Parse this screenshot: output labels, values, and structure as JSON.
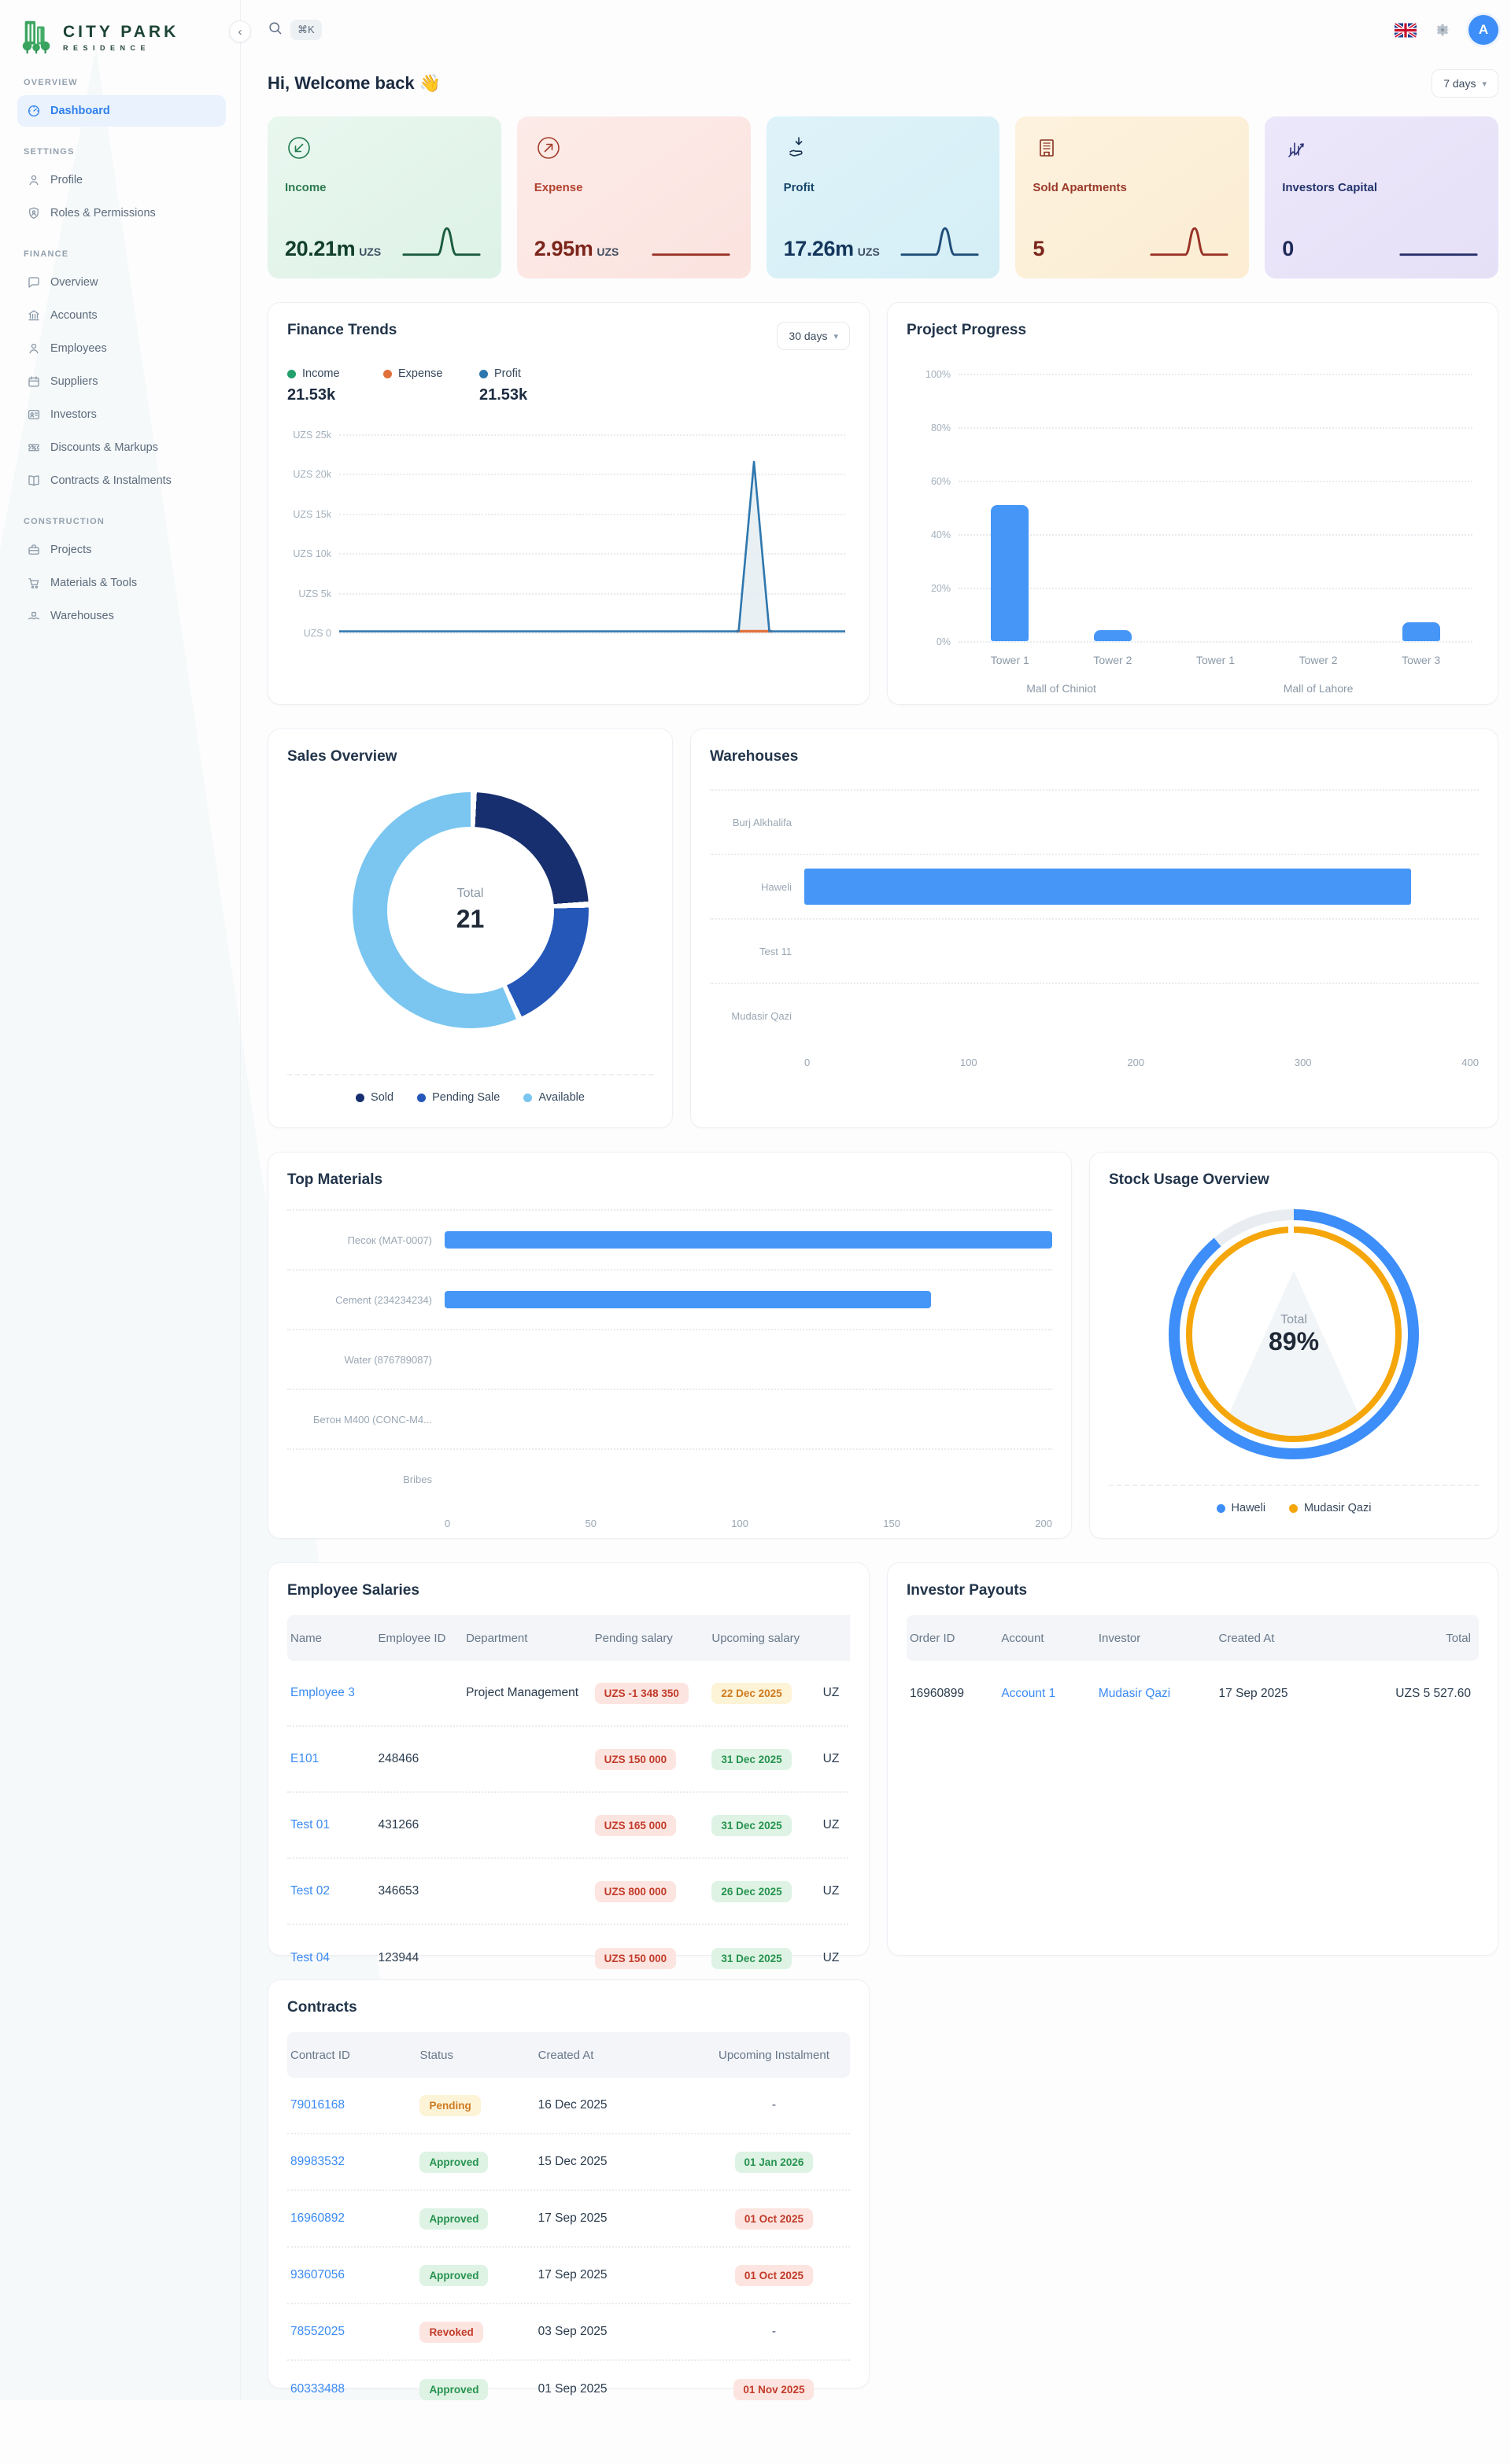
{
  "brand": {
    "line1": "CITY PARK",
    "line2": "RESIDENCE"
  },
  "header": {
    "search_shortcut": "⌘K",
    "welcome": "Hi, Welcome back 👋",
    "date_range": "7 days",
    "avatar_initial": "A"
  },
  "sidebar": {
    "sections": [
      {
        "label": "OVERVIEW",
        "items": [
          {
            "label": "Dashboard"
          }
        ]
      },
      {
        "label": "SETTINGS",
        "items": [
          {
            "label": "Profile"
          },
          {
            "label": "Roles & Permissions"
          }
        ]
      },
      {
        "label": "FINANCE",
        "items": [
          {
            "label": "Overview"
          },
          {
            "label": "Accounts"
          },
          {
            "label": "Employees"
          },
          {
            "label": "Suppliers"
          },
          {
            "label": "Investors"
          },
          {
            "label": "Discounts & Markups"
          },
          {
            "label": "Contracts & Instalments"
          }
        ]
      },
      {
        "label": "CONSTRUCTION",
        "items": [
          {
            "label": "Projects"
          },
          {
            "label": "Materials & Tools"
          },
          {
            "label": "Warehouses"
          }
        ]
      }
    ]
  },
  "stats": [
    {
      "label": "Income",
      "value": "20.21m",
      "unit": "UZS"
    },
    {
      "label": "Expense",
      "value": "2.95m",
      "unit": "UZS"
    },
    {
      "label": "Profit",
      "value": "17.26m",
      "unit": "UZS"
    },
    {
      "label": "Sold Apartments",
      "value": "5",
      "unit": ""
    },
    {
      "label": "Investors Capital",
      "value": "0",
      "unit": ""
    }
  ],
  "chart_data": [
    {
      "id": "finance_trends",
      "type": "line",
      "title": "Finance Trends",
      "range_selector": "30 days",
      "legend": [
        {
          "name": "Income",
          "color": "#22a06b",
          "total": "21.53k"
        },
        {
          "name": "Expense",
          "color": "#e1703c",
          "total": ""
        },
        {
          "name": "Profit",
          "color": "#2e77ae",
          "total": "21.53k"
        }
      ],
      "y_ticks": [
        "UZS 25k",
        "UZS 20k",
        "UZS 15k",
        "UZS 10k",
        "UZS 5k",
        "UZS 0"
      ],
      "ylim": [
        0,
        25000
      ],
      "series_note": "Income and Profit flat at 0 across 30 days with a single sharp spike near day 25; Expense ~0 throughout",
      "spike": {
        "value": 21530,
        "x_fraction": 0.82
      }
    },
    {
      "id": "project_progress",
      "type": "bar",
      "title": "Project Progress",
      "y_ticks": [
        "100%",
        "80%",
        "60%",
        "40%",
        "20%",
        "0%"
      ],
      "ylim": [
        0,
        100
      ],
      "bars": [
        {
          "label": "Tower 1",
          "group": "Mall of Chiniot",
          "value": 51
        },
        {
          "label": "Tower 2",
          "group": "Mall of Chiniot",
          "value": 4
        },
        {
          "label": "Tower 1",
          "group": "Mall of Lahore",
          "value": 0
        },
        {
          "label": "Tower 2",
          "group": "Mall of Lahore",
          "value": 0
        },
        {
          "label": "Tower 3",
          "group": "Mall of Lahore",
          "value": 7
        }
      ],
      "groups": [
        {
          "label": "Mall of Chiniot"
        },
        {
          "label": "Mall of Lahore"
        }
      ],
      "bar_color": "#4596f7"
    },
    {
      "id": "sales_overview",
      "type": "pie",
      "title": "Sales Overview",
      "center_label": "Total",
      "total": 21,
      "segments": [
        {
          "label": "Sold",
          "value": 5,
          "color": "#172f6e"
        },
        {
          "label": "Pending Sale",
          "value": 4,
          "color": "#2457b8"
        },
        {
          "label": "Available",
          "value": 12,
          "color": "#7ac6f0"
        }
      ]
    },
    {
      "id": "warehouses",
      "type": "bar",
      "orientation": "horizontal",
      "title": "Warehouses",
      "categories": [
        "Burj Alkhalifa",
        "Haweli",
        "Test 11",
        "Mudasir Qazi"
      ],
      "values": [
        0,
        360,
        0,
        0
      ],
      "x_ticks": [
        "0",
        "100",
        "200",
        "300",
        "400"
      ],
      "xlim": [
        0,
        400
      ],
      "bar_color": "#4596f7"
    },
    {
      "id": "top_materials",
      "type": "bar",
      "orientation": "horizontal",
      "title": "Top Materials",
      "categories": [
        "Песок (MAT-0007)",
        "Cement (234234234)",
        "Water (876789087)",
        "Бетон М400 (CONC-M4...",
        "Bribes"
      ],
      "values": [
        200,
        160,
        0,
        0,
        0
      ],
      "x_ticks": [
        "0",
        "50",
        "100",
        "150",
        "200"
      ],
      "xlim": [
        0,
        200
      ],
      "bar_color": "#4596f7"
    },
    {
      "id": "stock_usage",
      "type": "pie",
      "title": "Stock Usage Overview",
      "center_label": "Total",
      "center_value": "89%",
      "rings": [
        {
          "label": "Haweli",
          "color": "#3d8ef8",
          "pct": 89
        },
        {
          "label": "Mudasir Qazi",
          "color": "#f5a60a",
          "pct": 100
        }
      ]
    }
  ],
  "tables": {
    "employee_salaries": {
      "title": "Employee Salaries",
      "headers": [
        "Name",
        "Employee ID",
        "Department",
        "Pending salary",
        "Upcoming salary"
      ],
      "rows": [
        {
          "name": "Employee 3",
          "employee_id": "",
          "department": "Project Management",
          "pending_salary": "UZS -1 348 350",
          "upcoming_date": "22 Dec 2025",
          "clipped": "UZ"
        },
        {
          "name": "E101",
          "employee_id": "248466",
          "department": "",
          "pending_salary": "UZS 150 000",
          "upcoming_date": "31 Dec 2025",
          "clipped": "UZ"
        },
        {
          "name": "Test 01",
          "employee_id": "431266",
          "department": "",
          "pending_salary": "UZS 165 000",
          "upcoming_date": "31 Dec 2025",
          "clipped": "UZ"
        },
        {
          "name": "Test 02",
          "employee_id": "346653",
          "department": "",
          "pending_salary": "UZS 800 000",
          "upcoming_date": "26 Dec 2025",
          "clipped": "UZ"
        },
        {
          "name": "Test 04",
          "employee_id": "123944",
          "department": "",
          "pending_salary": "UZS 150 000",
          "upcoming_date": "31 Dec 2025",
          "clipped": "UZ"
        }
      ]
    },
    "investor_payouts": {
      "title": "Investor Payouts",
      "headers": [
        "Order ID",
        "Account",
        "Investor",
        "Created At",
        "Total"
      ],
      "rows": [
        {
          "order_id": "16960899",
          "account": "Account 1",
          "investor": "Mudasir Qazi",
          "created_at": "17 Sep 2025",
          "total": "UZS 5 527.60"
        }
      ]
    },
    "contracts": {
      "title": "Contracts",
      "headers": [
        "Contract ID",
        "Status",
        "Created At",
        "Upcoming Instalment"
      ],
      "rows": [
        {
          "contract_id": "79016168",
          "status": "Pending",
          "created_at": "16 Dec 2025",
          "upcoming": "-"
        },
        {
          "contract_id": "89983532",
          "status": "Approved",
          "created_at": "15 Dec 2025",
          "upcoming": "01 Jan 2026"
        },
        {
          "contract_id": "16960892",
          "status": "Approved",
          "created_at": "17 Sep 2025",
          "upcoming": "01 Oct 2025"
        },
        {
          "contract_id": "93607056",
          "status": "Approved",
          "created_at": "17 Sep 2025",
          "upcoming": "01 Oct 2025"
        },
        {
          "contract_id": "78552025",
          "status": "Revoked",
          "created_at": "03 Sep 2025",
          "upcoming": "-"
        },
        {
          "contract_id": "60333488",
          "status": "Approved",
          "created_at": "01 Sep 2025",
          "upcoming": "01 Nov 2025"
        }
      ]
    }
  }
}
